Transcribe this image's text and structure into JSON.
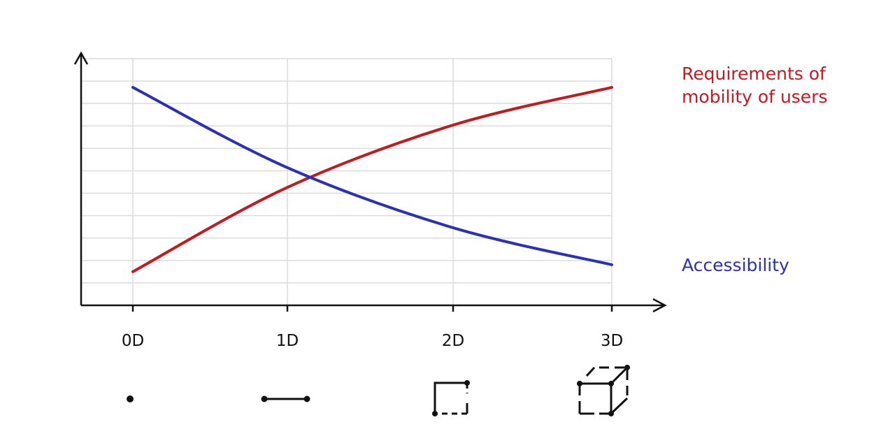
{
  "chart_data": {
    "type": "line",
    "categories": [
      "0D",
      "1D",
      "2D",
      "3D"
    ],
    "series": [
      {
        "name": "Requirements of mobility of users",
        "color": "#c21a1f",
        "values": [
          1.5,
          5.26,
          8.04,
          9.72
        ]
      },
      {
        "name": "Accessibility",
        "color": "#2b30b8",
        "values": [
          9.72,
          6.14,
          3.46,
          1.81
        ]
      }
    ],
    "ylim": [
      0,
      11
    ],
    "yticks": [
      1,
      2,
      3,
      4,
      5,
      6,
      7,
      8,
      9,
      10,
      11
    ],
    "grid": true
  }
}
